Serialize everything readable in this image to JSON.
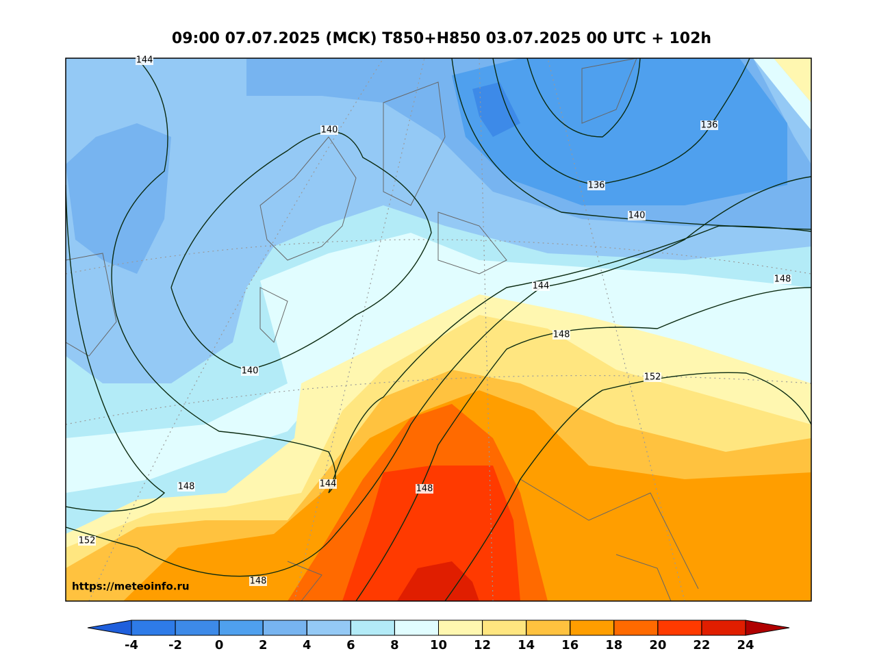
{
  "title": "09:00 07.07.2025 (MCK) T850+H850 03.07.2025 00 UTC + 102h",
  "watermark": "https://meteoinfo.ru",
  "contour_labels": [
    "144",
    "140",
    "136",
    "136",
    "140",
    "144",
    "148",
    "148",
    "152",
    "140",
    "148",
    "144",
    "148",
    "152",
    "148"
  ],
  "colorbar": {
    "ticks": [
      -4,
      -2,
      0,
      2,
      4,
      6,
      8,
      10,
      12,
      14,
      16,
      18,
      20,
      22,
      24
    ],
    "colors": [
      "#1f5fdc",
      "#2e7be8",
      "#3d8ae8",
      "#4fa0ee",
      "#77b4f0",
      "#94c9f5",
      "#b3ebf7",
      "#e1fdff",
      "#fff7b0",
      "#ffe680",
      "#ffc23f",
      "#ff9e00",
      "#ff6a00",
      "#ff3a00",
      "#e01e00",
      "#b00000"
    ]
  }
}
